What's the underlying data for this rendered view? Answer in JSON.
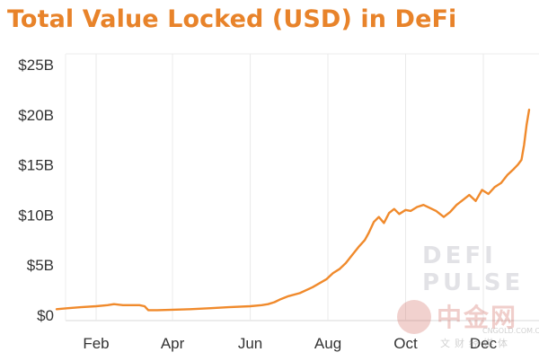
{
  "chart_data": {
    "type": "line",
    "title": "Total Value Locked (USD) in DeFi",
    "xlabel": "",
    "ylabel": "",
    "x_ticks": [
      "Feb",
      "Apr",
      "Jun",
      "Aug",
      "Oct",
      "Dec"
    ],
    "y_ticks": [
      "$0",
      "$5B",
      "$10B",
      "$15B",
      "$20B",
      "$25B"
    ],
    "ylim": [
      0,
      25
    ],
    "y_unit": "USD billions",
    "grid": "vertical",
    "legend": "none",
    "color": "#f08a2c",
    "series": [
      {
        "name": "",
        "x": [
          "2020-01-01",
          "2020-01-10",
          "2020-01-20",
          "2020-02-01",
          "2020-02-10",
          "2020-02-15",
          "2020-02-22",
          "2020-03-01",
          "2020-03-06",
          "2020-03-10",
          "2020-03-13",
          "2020-03-20",
          "2020-04-01",
          "2020-04-15",
          "2020-05-01",
          "2020-05-15",
          "2020-06-01",
          "2020-06-10",
          "2020-06-15",
          "2020-06-20",
          "2020-06-25",
          "2020-07-01",
          "2020-07-10",
          "2020-07-20",
          "2020-07-31",
          "2020-08-05",
          "2020-08-10",
          "2020-08-15",
          "2020-08-20",
          "2020-08-25",
          "2020-08-30",
          "2020-09-02",
          "2020-09-06",
          "2020-09-10",
          "2020-09-14",
          "2020-09-18",
          "2020-09-22",
          "2020-09-26",
          "2020-10-01",
          "2020-10-05",
          "2020-10-10",
          "2020-10-15",
          "2020-10-20",
          "2020-10-25",
          "2020-10-31",
          "2020-11-05",
          "2020-11-10",
          "2020-11-15",
          "2020-11-20",
          "2020-11-25",
          "2020-11-30",
          "2020-12-05",
          "2020-12-10",
          "2020-12-15",
          "2020-12-20",
          "2020-12-25",
          "2020-12-28",
          "2020-12-31",
          "2021-01-02",
          "2021-01-04",
          "2021-01-06"
        ],
        "values": [
          0.6,
          0.7,
          0.8,
          0.9,
          1.0,
          1.1,
          1.0,
          1.0,
          1.0,
          0.9,
          0.5,
          0.5,
          0.55,
          0.6,
          0.7,
          0.8,
          0.9,
          1.0,
          1.1,
          1.3,
          1.6,
          1.9,
          2.2,
          2.8,
          3.6,
          4.2,
          4.6,
          5.2,
          6.0,
          6.8,
          7.5,
          8.2,
          9.3,
          9.8,
          9.2,
          10.2,
          10.6,
          10.1,
          10.5,
          10.4,
          10.8,
          11.0,
          10.7,
          10.4,
          9.8,
          10.3,
          11.0,
          11.5,
          12.0,
          11.4,
          12.5,
          12.1,
          12.8,
          13.2,
          14.0,
          14.6,
          15.0,
          15.5,
          17.0,
          19.0,
          20.5
        ]
      }
    ]
  },
  "watermarks": {
    "defi_pulse_line1": "DEFI",
    "defi_pulse_line2": "PULSE",
    "cngold_cn": "中金网",
    "cngold_site": "CNGOLD.COM.CN",
    "cngold_sub": "文财经媒体"
  }
}
